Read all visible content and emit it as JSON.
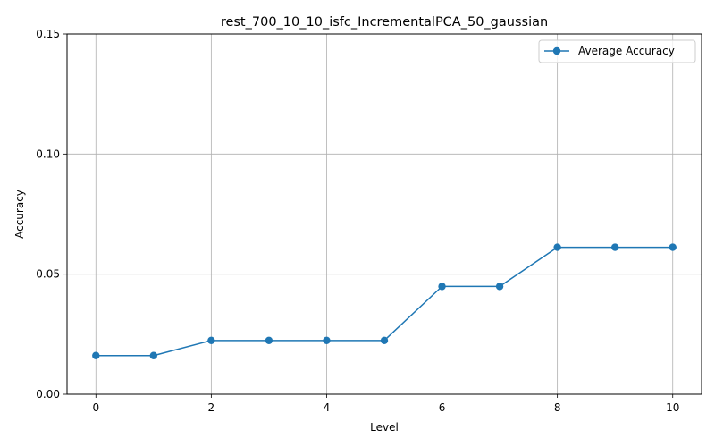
{
  "chart_data": {
    "type": "line",
    "title": "rest_700_10_10_isfc_IncrementalPCA_50_gaussian",
    "xlabel": "Level",
    "ylabel": "Accuracy",
    "x": [
      0,
      1,
      2,
      3,
      4,
      5,
      6,
      7,
      8,
      9,
      10
    ],
    "series": [
      {
        "name": "Average Accuracy",
        "values": [
          0.0161,
          0.0161,
          0.0224,
          0.0224,
          0.0224,
          0.0224,
          0.0449,
          0.0449,
          0.0612,
          0.0612,
          0.0612
        ],
        "color": "#1f77b4",
        "marker": "circle"
      }
    ],
    "xlim": [
      -0.5,
      10.5
    ],
    "ylim": [
      0.0,
      0.15
    ],
    "x_ticks": [
      0,
      2,
      4,
      6,
      8,
      10
    ],
    "x_tick_labels": [
      "0",
      "2",
      "4",
      "6",
      "8",
      "10"
    ],
    "y_ticks": [
      0.0,
      0.05,
      0.1,
      0.15
    ],
    "y_tick_labels": [
      "0.00",
      "0.05",
      "0.10",
      "0.15"
    ],
    "x_grid_ticks": [
      0,
      2,
      4,
      6,
      8,
      10
    ],
    "grid": true,
    "legend": "top-right"
  }
}
